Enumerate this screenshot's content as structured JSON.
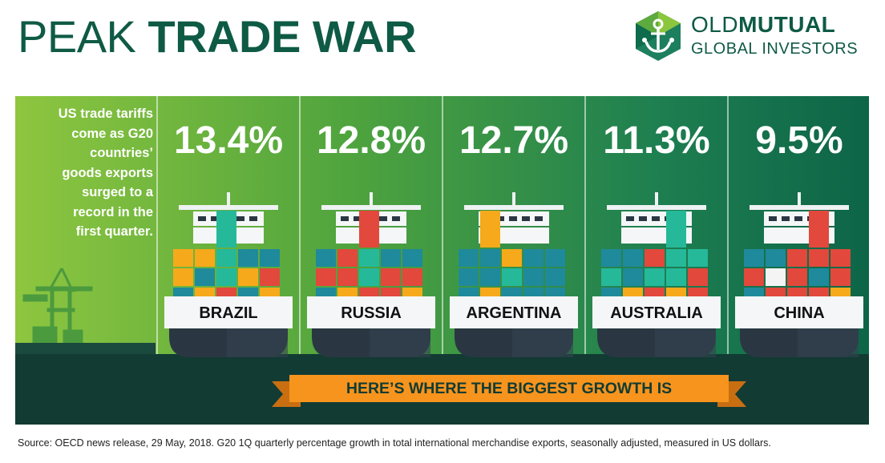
{
  "header": {
    "title_light": "PEAK",
    "title_bold": "TRADE WAR",
    "logo_line1_a": "OLD",
    "logo_line1_b": "MUTUAL",
    "logo_line2": "GLOBAL INVESTORS"
  },
  "intro": {
    "lines": [
      "US trade tariffs",
      "come as G20",
      "countries’",
      "goods exports",
      "surged to a",
      "record in the",
      "first quarter."
    ]
  },
  "countries": [
    {
      "name": "BRAZIL",
      "growth": "13.4%"
    },
    {
      "name": "RUSSIA",
      "growth": "12.8%"
    },
    {
      "name": "ARGENTINA",
      "growth": "12.7%"
    },
    {
      "name": "AUSTRALIA",
      "growth": "11.3%"
    },
    {
      "name": "CHINA",
      "growth": "9.5%"
    }
  ],
  "banner": "HERE’S WHERE THE BIGGEST GROWTH IS",
  "source": "Source: OECD news release, 29 May, 2018. G20 1Q quarterly percentage growth in total international merchandise exports, seasonally adjusted, measured in US dollars.",
  "colors": {
    "title_green": "#0e5a45",
    "hull_top": "#3a4a57",
    "hull_bottom": "#2a3743",
    "container_orange": "#f6a91b",
    "container_teal": "#1f8a9b",
    "container_green": "#25b99a",
    "container_red": "#e2483c",
    "container_white": "#f4f4f4",
    "banner_orange": "#f7941d",
    "sea": "#123b33"
  },
  "icons": {
    "logo": "anchor-hexagon-icon",
    "port": "port-crane-icon"
  }
}
